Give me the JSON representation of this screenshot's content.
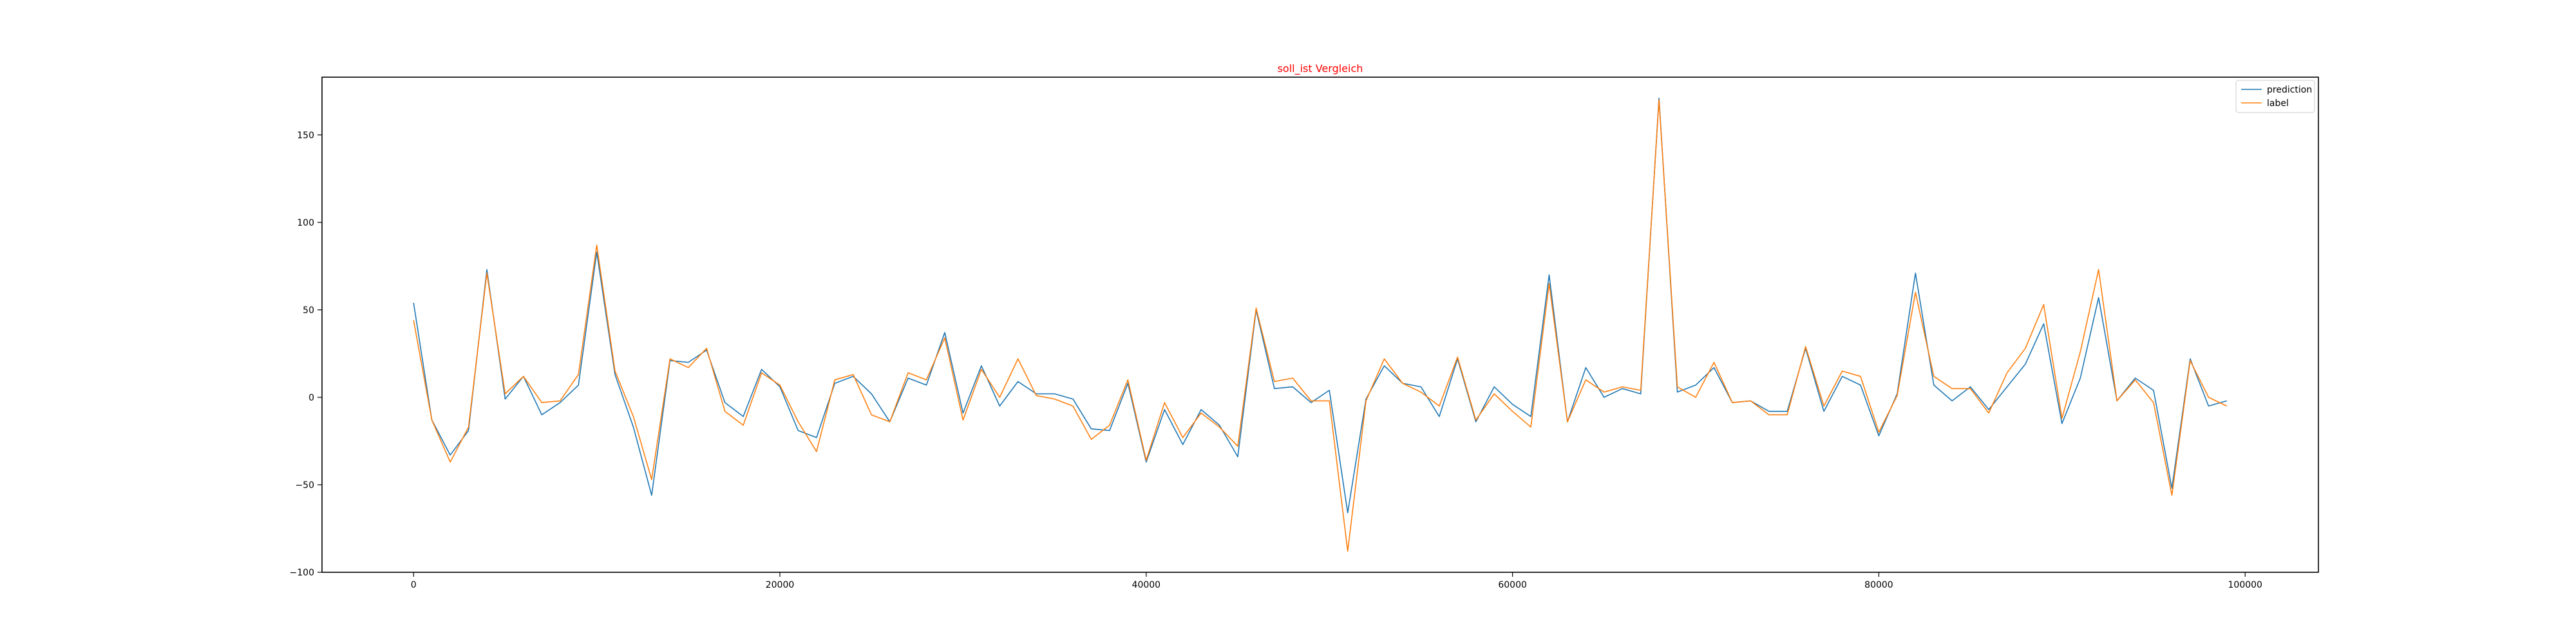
{
  "chart_data": {
    "type": "line",
    "title": "soll_ist Vergleich",
    "title_color": "#ff0000",
    "xlabel": "",
    "ylabel": "",
    "xlim": [
      -5000,
      104000
    ],
    "ylim": [
      -100,
      183
    ],
    "x_ticks": [
      0,
      20000,
      40000,
      60000,
      80000,
      100000
    ],
    "y_ticks": [
      -100,
      -50,
      0,
      50,
      100,
      150
    ],
    "x_tick_labels": [
      "0",
      "20000",
      "40000",
      "60000",
      "80000",
      "100000"
    ],
    "y_tick_labels": [
      "−100",
      "−50",
      "0",
      "50",
      "100",
      "150"
    ],
    "grid": false,
    "legend_position": "upper right",
    "x": [
      0,
      1000,
      2000,
      3000,
      4000,
      5000,
      6000,
      7000,
      8000,
      9000,
      10000,
      11000,
      12000,
      13000,
      14000,
      15000,
      16000,
      17000,
      18000,
      19000,
      20000,
      21000,
      22000,
      23000,
      24000,
      25000,
      26000,
      27000,
      28000,
      29000,
      30000,
      31000,
      32000,
      33000,
      34000,
      35000,
      36000,
      37000,
      38000,
      39000,
      40000,
      41000,
      42000,
      43000,
      44000,
      45000,
      46000,
      47000,
      48000,
      49000,
      50000,
      51000,
      52000,
      53000,
      54000,
      55000,
      56000,
      57000,
      58000,
      59000,
      60000,
      61000,
      62000,
      63000,
      64000,
      65000,
      66000,
      67000,
      68000,
      69000,
      70000,
      71000,
      72000,
      73000,
      74000,
      75000,
      76000,
      77000,
      78000,
      79000,
      80000,
      81000,
      82000,
      83000,
      84000,
      85000,
      86000,
      87000,
      88000,
      89000,
      90000,
      91000,
      92000,
      93000,
      94000,
      95000,
      96000,
      97000,
      98000,
      99000
    ],
    "series": [
      {
        "name": "prediction",
        "color": "#1f77b4",
        "values": [
          54,
          -13,
          -33,
          -19,
          73,
          -1,
          12,
          -10,
          -3,
          7,
          83,
          13,
          -17,
          -56,
          21,
          20,
          27,
          -3,
          -11,
          16,
          6,
          -19,
          -23,
          8,
          12,
          2,
          -14,
          11,
          7,
          37,
          -9,
          18,
          -5,
          9,
          2,
          2,
          -1,
          -18,
          -19,
          8,
          -37,
          -7,
          -27,
          -7,
          -16,
          -34,
          50,
          5,
          6,
          -3,
          4,
          -66,
          -1,
          18,
          8,
          6,
          -11,
          22,
          -14,
          6,
          -4,
          -11,
          70,
          -14,
          17,
          0,
          5,
          2,
          171,
          3,
          7,
          17,
          -3,
          -2,
          -8,
          -8,
          28,
          -8,
          12,
          7,
          -22,
          2,
          71,
          7,
          -2,
          6,
          -7,
          6,
          19,
          42,
          -15,
          11,
          57,
          -2,
          11,
          4,
          -52,
          22,
          -5,
          -2
        ]
      },
      {
        "name": "label",
        "color": "#ff7f0e",
        "values": [
          44,
          -13,
          -37,
          -17,
          71,
          2,
          12,
          -3,
          -2,
          13,
          87,
          15,
          -11,
          -47,
          22,
          17,
          28,
          -8,
          -16,
          14,
          7,
          -14,
          -31,
          10,
          13,
          -10,
          -14,
          14,
          10,
          34,
          -13,
          16,
          0,
          22,
          1,
          -1,
          -5,
          -24,
          -16,
          10,
          -36,
          -3,
          -23,
          -9,
          -17,
          -28,
          51,
          9,
          11,
          -2,
          -2,
          -88,
          -2,
          22,
          8,
          3,
          -5,
          23,
          -13,
          2,
          -8,
          -17,
          65,
          -14,
          10,
          3,
          6,
          4,
          170,
          6,
          0,
          20,
          -3,
          -2,
          -10,
          -10,
          29,
          -5,
          15,
          12,
          -20,
          1,
          60,
          12,
          5,
          5,
          -9,
          14,
          28,
          53,
          -12,
          26,
          73,
          -2,
          10,
          -3,
          -56,
          21,
          0,
          -5
        ]
      }
    ]
  }
}
